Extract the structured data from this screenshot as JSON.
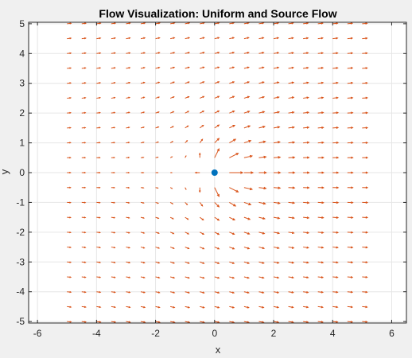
{
  "chart_data": {
    "type": "quiver",
    "title": "Flow Visualization: Uniform and Source Flow",
    "xlabel": "x",
    "ylabel": "y",
    "xlim": [
      -6.3,
      6.5
    ],
    "ylim": [
      -5.05,
      5.05
    ],
    "xticks": [
      -6,
      -4,
      -2,
      0,
      2,
      4,
      6
    ],
    "yticks": [
      -5,
      -4,
      -3,
      -2,
      -1,
      0,
      1,
      2,
      3,
      4,
      5
    ],
    "xtick_labels": [
      "-6",
      "-4",
      "-2",
      "0",
      "2",
      "4",
      "6"
    ],
    "ytick_labels": [
      "-5",
      "-4",
      "-3",
      "-2",
      "-1",
      "0",
      "1",
      "2",
      "3",
      "4",
      "5"
    ],
    "grid": true,
    "series": [
      {
        "kind": "vector-field",
        "grid_x": {
          "start": -5,
          "stop": 5,
          "step": 0.5
        },
        "grid_y": {
          "start": -5,
          "stop": 5,
          "step": 0.5
        },
        "uniform_flow": {
          "u": 1,
          "v": 0
        },
        "source": {
          "x": 0,
          "y": 0,
          "strength": 1
        },
        "color": "#d95319"
      },
      {
        "kind": "point",
        "x": 0,
        "y": 0,
        "color": "#0072bd"
      }
    ]
  },
  "colors": {
    "figure_background": "#f0f0f0",
    "axes_background": "#ffffff",
    "grid": "#e6e6e6",
    "axis_line": "#262626",
    "arrow": "#d95319",
    "source_point": "#0072bd"
  }
}
